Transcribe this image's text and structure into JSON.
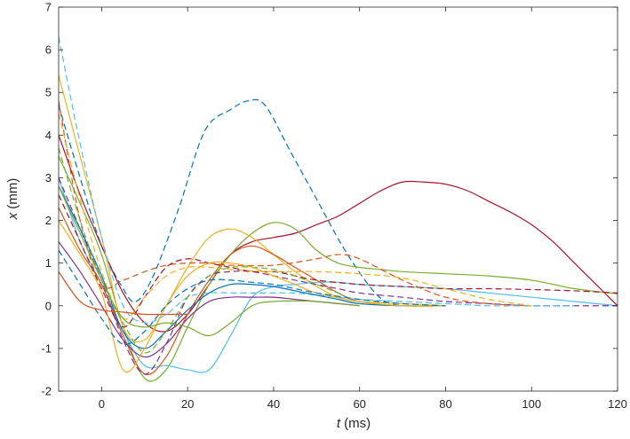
{
  "chart_data": {
    "type": "line",
    "xlabel_var": "t",
    "xlabel_unit": "(ms)",
    "ylabel_var": "x",
    "ylabel_unit": "(mm)",
    "xlim": [
      -10,
      120
    ],
    "ylim": [
      -2,
      7
    ],
    "xticks": [
      "0",
      "20",
      "40",
      "60",
      "80",
      "100",
      "120"
    ],
    "yticks": [
      "-2",
      "-1",
      "0",
      "1",
      "2",
      "3",
      "4",
      "5",
      "6",
      "7"
    ],
    "grid": false,
    "series": [
      {
        "color": "#0072BD",
        "style": "dashed",
        "x": [
          -10,
          -5,
          0,
          5,
          8,
          12,
          18,
          24,
          30,
          34,
          38,
          44,
          50,
          56,
          62,
          66,
          70
        ],
        "y": [
          4.7,
          3.0,
          1.4,
          0.4,
          0.1,
          0.7,
          2.3,
          4.1,
          4.6,
          4.8,
          4.7,
          3.6,
          2.5,
          1.4,
          0.5,
          0.1,
          0.0
        ]
      },
      {
        "color": "#A2142F",
        "style": "solid",
        "x": [
          -10,
          -5,
          0,
          5,
          10,
          15,
          20,
          25,
          30,
          35,
          40,
          45,
          50,
          55,
          60,
          65,
          70,
          75,
          80,
          85,
          90,
          95,
          100,
          105,
          110,
          115,
          120
        ],
        "y": [
          4.0,
          2.6,
          1.4,
          0.3,
          -0.4,
          -0.6,
          -0.2,
          0.5,
          1.2,
          1.5,
          1.6,
          1.7,
          1.9,
          2.1,
          2.4,
          2.7,
          2.9,
          2.9,
          2.85,
          2.7,
          2.45,
          2.2,
          1.9,
          1.5,
          1.0,
          0.5,
          0.0
        ]
      },
      {
        "color": "#77AC30",
        "style": "solid",
        "x": [
          -10,
          -5,
          0,
          5,
          10,
          15,
          20,
          25,
          30,
          35,
          40,
          45,
          50,
          55,
          60,
          65,
          70,
          80,
          90,
          100,
          110,
          120
        ],
        "y": [
          3.5,
          2.4,
          1.2,
          -0.5,
          -1.7,
          -1.5,
          -0.5,
          0.5,
          1.2,
          1.7,
          1.95,
          1.8,
          1.3,
          1.0,
          0.9,
          0.85,
          0.8,
          0.75,
          0.7,
          0.6,
          0.4,
          0.28
        ]
      },
      {
        "color": "#4DBEEE",
        "style": "solid",
        "x": [
          -10,
          -5,
          0,
          5,
          10,
          15,
          20,
          25,
          30,
          35,
          40,
          45,
          50,
          55,
          60,
          70,
          80,
          90,
          100,
          110,
          120
        ],
        "y": [
          3.0,
          1.5,
          0.5,
          -0.6,
          -1.4,
          -1.4,
          -1.5,
          -1.5,
          -0.7,
          0.2,
          0.45,
          0.5,
          0.55,
          0.55,
          0.5,
          0.45,
          0.4,
          0.3,
          0.2,
          0.1,
          0.0
        ]
      },
      {
        "color": "#EDB120",
        "style": "solid",
        "x": [
          -10,
          -5,
          0,
          5,
          10,
          15,
          20,
          25,
          30,
          35,
          40,
          45,
          50,
          55,
          60,
          70,
          80
        ],
        "y": [
          5.4,
          3.5,
          1.6,
          -0.5,
          -0.8,
          0.0,
          0.9,
          1.6,
          1.8,
          1.6,
          1.2,
          0.8,
          0.45,
          0.2,
          0.1,
          0.05,
          0.0
        ]
      },
      {
        "color": "#D95319",
        "style": "solid",
        "x": [
          -10,
          -5,
          0,
          5,
          10,
          15,
          20,
          25,
          30,
          35,
          40,
          45,
          50,
          55,
          60,
          70,
          80
        ],
        "y": [
          2.3,
          1.3,
          0.5,
          -0.7,
          -1.6,
          -1.2,
          -0.2,
          0.6,
          1.2,
          1.4,
          1.2,
          0.9,
          0.6,
          0.3,
          0.1,
          0.0,
          0.0
        ]
      },
      {
        "color": "#7E2F8E",
        "style": "solid",
        "x": [
          -10,
          -5,
          0,
          5,
          10,
          15,
          20,
          25,
          30,
          35,
          40,
          45,
          50,
          55,
          60
        ],
        "y": [
          1.5,
          0.8,
          0.0,
          -0.8,
          -1.2,
          -0.9,
          -0.3,
          0.1,
          0.2,
          0.2,
          0.2,
          0.15,
          0.1,
          0.05,
          0.0
        ]
      },
      {
        "color": "#7E2F8E",
        "style": "dashed",
        "x": [
          -10,
          -5,
          0,
          5,
          10,
          15,
          20,
          25,
          30,
          35,
          40,
          45,
          50,
          55,
          60,
          70,
          80,
          90,
          100,
          110,
          120
        ],
        "y": [
          3.0,
          1.8,
          0.6,
          -0.8,
          -1.6,
          -0.9,
          0.2,
          0.7,
          0.8,
          0.8,
          0.7,
          0.6,
          0.5,
          0.4,
          0.3,
          0.2,
          0.1,
          0.05,
          0.0,
          0.0,
          0.0
        ]
      },
      {
        "color": "#A2142F",
        "style": "dashed",
        "x": [
          -10,
          -5,
          0,
          5,
          10,
          15,
          20,
          25,
          30,
          35,
          40,
          45,
          50,
          60,
          70,
          80,
          90,
          100,
          110,
          120
        ],
        "y": [
          2.6,
          1.5,
          0.4,
          -0.5,
          0.2,
          0.9,
          1.1,
          1.0,
          0.9,
          0.8,
          0.8,
          0.7,
          0.6,
          0.5,
          0.45,
          0.4,
          0.4,
          0.38,
          0.35,
          0.3
        ]
      },
      {
        "color": "#D95319",
        "style": "dashed",
        "x": [
          -10,
          -5,
          0,
          5,
          10,
          15,
          20,
          25,
          30,
          40,
          50,
          55,
          60,
          70,
          80,
          90,
          100
        ],
        "y": [
          4.8,
          2.0,
          0.5,
          0.6,
          0.8,
          0.95,
          1.0,
          1.0,
          0.95,
          0.95,
          1.1,
          1.2,
          1.1,
          0.6,
          0.2,
          0.05,
          0.0
        ]
      },
      {
        "color": "#4DBEEE",
        "style": "dashed",
        "x": [
          -10,
          -5,
          0,
          5,
          10,
          15,
          20,
          25,
          30,
          35,
          40,
          45,
          50,
          55,
          60,
          70,
          80,
          90,
          100,
          110
        ],
        "y": [
          6.3,
          3.8,
          1.6,
          0.0,
          -0.4,
          -0.2,
          0.2,
          0.3,
          0.3,
          0.3,
          0.3,
          0.3,
          0.25,
          0.2,
          0.15,
          0.1,
          0.05,
          0.0,
          0.0,
          0.0
        ]
      },
      {
        "color": "#EDB120",
        "style": "dashed",
        "x": [
          -10,
          -5,
          0,
          5,
          10,
          15,
          20,
          25,
          30,
          40,
          50,
          60,
          70,
          80,
          90,
          100
        ],
        "y": [
          4.5,
          2.5,
          0.8,
          -0.3,
          0.2,
          0.7,
          0.9,
          0.9,
          0.85,
          0.8,
          0.8,
          0.75,
          0.65,
          0.4,
          0.15,
          0.0
        ]
      },
      {
        "color": "#0072BD",
        "style": "solid",
        "x": [
          -10,
          -5,
          0,
          5,
          10,
          15,
          20,
          25,
          30,
          35,
          40,
          45,
          50,
          55,
          60,
          70,
          80
        ],
        "y": [
          2.8,
          1.8,
          0.7,
          -0.6,
          -1.0,
          -0.6,
          -0.1,
          0.3,
          0.5,
          0.5,
          0.45,
          0.35,
          0.25,
          0.15,
          0.05,
          0.0,
          0.0
        ]
      },
      {
        "color": "#77AC30",
        "style": "dashed",
        "x": [
          -10,
          -5,
          0,
          5,
          10,
          15,
          20,
          25,
          30,
          35,
          40,
          45,
          50,
          55,
          60,
          70,
          80
        ],
        "y": [
          3.7,
          2.0,
          0.6,
          -0.4,
          -1.1,
          -0.6,
          0.2,
          0.7,
          0.9,
          0.9,
          0.85,
          0.7,
          0.5,
          0.3,
          0.1,
          0.0,
          0.0
        ]
      },
      {
        "color": "#EDB120",
        "style": "solid",
        "x": [
          -10,
          -5,
          0,
          5,
          10,
          15,
          20,
          25,
          30,
          35,
          40,
          45,
          50,
          60,
          70,
          80
        ],
        "y": [
          2.0,
          1.2,
          0.3,
          -1.5,
          -1.0,
          0.0,
          0.7,
          1.0,
          1.0,
          0.9,
          0.7,
          0.5,
          0.3,
          0.1,
          0.0,
          0.0
        ]
      },
      {
        "color": "#0072BD",
        "style": "dashed",
        "x": [
          -10,
          -5,
          0,
          5,
          10,
          15,
          20,
          25,
          30,
          35,
          40,
          45,
          50,
          60,
          70,
          80
        ],
        "y": [
          1.3,
          0.5,
          -0.3,
          -0.9,
          -0.6,
          0.0,
          0.4,
          0.6,
          0.6,
          0.55,
          0.5,
          0.4,
          0.3,
          0.15,
          0.05,
          0.0
        ]
      },
      {
        "color": "#77AC30",
        "style": "solid",
        "x": [
          -10,
          -5,
          0,
          5,
          10,
          15,
          20,
          25,
          30,
          35,
          40,
          50,
          60
        ],
        "y": [
          2.8,
          1.7,
          0.6,
          -0.3,
          -0.5,
          -0.4,
          -0.5,
          -0.7,
          -0.4,
          0.0,
          0.1,
          0.1,
          0.0
        ]
      },
      {
        "color": "#D95319",
        "style": "solid",
        "x": [
          -10,
          -5,
          0,
          5,
          10,
          15,
          20
        ],
        "y": [
          0.8,
          0.1,
          -0.1,
          -0.15,
          -0.2,
          -0.2,
          -0.2
        ]
      }
    ]
  }
}
